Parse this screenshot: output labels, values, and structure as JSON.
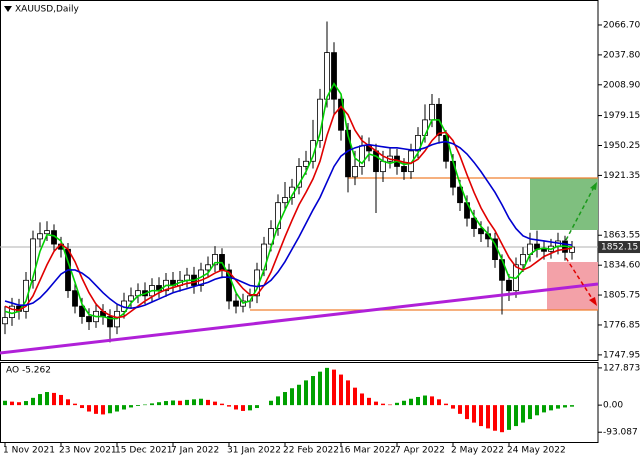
{
  "chart_data": [
    {
      "type": "candlestick",
      "title": "XAUUSD,Daily",
      "categories": [
        "1 Nov 2021",
        null,
        null,
        null,
        null,
        null,
        null,
        null,
        "23 Nov 2021",
        null,
        null,
        null,
        null,
        null,
        null,
        null,
        "15 Dec 2021",
        null,
        null,
        null,
        null,
        null,
        null,
        null,
        "7 Jan 2022",
        null,
        null,
        null,
        null,
        null,
        null,
        null,
        "31 Jan 2022",
        null,
        null,
        null,
        null,
        null,
        null,
        null,
        "22 Feb 2022",
        null,
        null,
        null,
        null,
        null,
        null,
        null,
        "16 Mar 2022",
        null,
        null,
        null,
        null,
        null,
        null,
        null,
        "7 Apr 2022",
        null,
        null,
        null,
        null,
        null,
        null,
        null,
        "2 May 2022",
        null,
        null,
        null,
        null,
        null,
        null,
        null,
        "24 May 2022",
        null,
        null,
        null,
        null,
        null,
        null,
        null,
        null,
        null
      ],
      "open": [
        1778,
        1784,
        1795,
        1790,
        1820,
        1860,
        1865,
        1868,
        1855,
        1850,
        1810,
        1795,
        1785,
        1780,
        1790,
        1785,
        1775,
        1790,
        1800,
        1805,
        1810,
        1805,
        1815,
        1810,
        1820,
        1815,
        1820,
        1825,
        1815,
        1830,
        1835,
        1845,
        1830,
        1800,
        1795,
        1800,
        1805,
        1830,
        1855,
        1870,
        1895,
        1900,
        1910,
        1930,
        1935,
        1955,
        1995,
        2040,
        1995,
        1965,
        1920,
        1930,
        1950,
        1945,
        1925,
        1935,
        1940,
        1930,
        1925,
        1945,
        1960,
        1975,
        1990,
        1960,
        1935,
        1910,
        1895,
        1880,
        1870,
        1865,
        1860,
        1840,
        1820,
        1810,
        1835,
        1845,
        1855,
        1850,
        1848,
        1853,
        1858,
        1847
      ],
      "high": [
        1795,
        1803,
        1802,
        1828,
        1868,
        1876,
        1877,
        1874,
        1862,
        1856,
        1818,
        1803,
        1793,
        1798,
        1797,
        1792,
        1797,
        1808,
        1813,
        1817,
        1818,
        1822,
        1823,
        1827,
        1828,
        1829,
        1832,
        1833,
        1837,
        1843,
        1853,
        1851,
        1836,
        1808,
        1807,
        1812,
        1837,
        1862,
        1878,
        1903,
        1915,
        1918,
        1938,
        1945,
        1975,
        2005,
        2070,
        2050,
        2000,
        1972,
        1945,
        1960,
        1958,
        1952,
        1945,
        1948,
        1947,
        1938,
        1952,
        1968,
        1990,
        2000,
        1996,
        1965,
        1942,
        1917,
        1902,
        1888,
        1877,
        1872,
        1866,
        1845,
        1826,
        1842,
        1852,
        1866,
        1868,
        1858,
        1860,
        1866,
        1863,
        1858
      ],
      "low": [
        1768,
        1776,
        1782,
        1783,
        1812,
        1852,
        1858,
        1848,
        1842,
        1803,
        1788,
        1778,
        1772,
        1774,
        1777,
        1760,
        1768,
        1783,
        1793,
        1798,
        1797,
        1799,
        1803,
        1804,
        1808,
        1809,
        1813,
        1807,
        1809,
        1823,
        1828,
        1822,
        1792,
        1788,
        1789,
        1793,
        1798,
        1824,
        1848,
        1863,
        1887,
        1893,
        1903,
        1922,
        1928,
        1948,
        1987,
        1980,
        1955,
        1905,
        1912,
        1922,
        1935,
        1885,
        1915,
        1928,
        1922,
        1917,
        1918,
        1938,
        1953,
        1968,
        1952,
        1928,
        1902,
        1887,
        1872,
        1862,
        1857,
        1852,
        1832,
        1787,
        1800,
        1803,
        1828,
        1838,
        1842,
        1840,
        1841,
        1845,
        1839,
        1840
      ],
      "close": [
        1784,
        1795,
        1790,
        1820,
        1860,
        1865,
        1868,
        1855,
        1850,
        1810,
        1795,
        1785,
        1780,
        1790,
        1785,
        1775,
        1790,
        1800,
        1805,
        1810,
        1805,
        1815,
        1810,
        1820,
        1815,
        1820,
        1825,
        1815,
        1830,
        1835,
        1845,
        1830,
        1800,
        1795,
        1800,
        1805,
        1830,
        1855,
        1870,
        1895,
        1900,
        1910,
        1930,
        1935,
        1955,
        1995,
        2040,
        1995,
        1965,
        1920,
        1930,
        1950,
        1945,
        1925,
        1935,
        1940,
        1930,
        1925,
        1945,
        1960,
        1975,
        1990,
        1960,
        1935,
        1910,
        1895,
        1880,
        1870,
        1865,
        1860,
        1840,
        1820,
        1810,
        1835,
        1845,
        1855,
        1850,
        1848,
        1853,
        1858,
        1847,
        1852.15
      ],
      "up_color": "#ffffff",
      "down_color": "#000000",
      "wick_color": "#000000",
      "series": [
        {
          "color": "#00d000",
          "values": [
            1790,
            1788,
            1790,
            1800,
            1823,
            1848,
            1864,
            1863,
            1858,
            1838,
            1818,
            1797,
            1787,
            1785,
            1785,
            1783,
            1783,
            1788,
            1798,
            1805,
            1807,
            1810,
            1810,
            1815,
            1815,
            1818,
            1820,
            1820,
            1823,
            1827,
            1837,
            1837,
            1825,
            1808,
            1798,
            1800,
            1812,
            1830,
            1852,
            1873,
            1888,
            1902,
            1913,
            1925,
            1940,
            1962,
            1997,
            2010,
            2000,
            1960,
            1938,
            1933,
            1942,
            1940,
            1935,
            1933,
            1935,
            1932,
            1933,
            1943,
            1960,
            1975,
            1975,
            1962,
            1935,
            1913,
            1895,
            1882,
            1872,
            1865,
            1855,
            1840,
            1823,
            1822,
            1830,
            1845,
            1850,
            1851,
            1850,
            1853,
            1853,
            1852
          ]
        },
        {
          "color": "#e00000",
          "values": [
            1795,
            1792,
            1791,
            1795,
            1805,
            1820,
            1835,
            1848,
            1855,
            1850,
            1838,
            1822,
            1808,
            1797,
            1790,
            1786,
            1784,
            1785,
            1790,
            1795,
            1800,
            1804,
            1808,
            1811,
            1813,
            1815,
            1817,
            1818,
            1820,
            1823,
            1827,
            1830,
            1828,
            1820,
            1812,
            1806,
            1806,
            1815,
            1828,
            1845,
            1862,
            1878,
            1893,
            1905,
            1918,
            1935,
            1960,
            1980,
            1988,
            1980,
            1965,
            1955,
            1950,
            1945,
            1940,
            1937,
            1936,
            1934,
            1933,
            1937,
            1945,
            1955,
            1962,
            1963,
            1955,
            1940,
            1922,
            1905,
            1890,
            1878,
            1868,
            1855,
            1842,
            1833,
            1830,
            1833,
            1838,
            1843,
            1846,
            1849,
            1850,
            1851
          ]
        },
        {
          "color": "#0000d0",
          "values": [
            1800,
            1798,
            1796,
            1796,
            1798,
            1803,
            1810,
            1818,
            1826,
            1830,
            1830,
            1827,
            1822,
            1815,
            1808,
            1802,
            1797,
            1794,
            1793,
            1794,
            1796,
            1799,
            1802,
            1805,
            1808,
            1810,
            1812,
            1814,
            1816,
            1818,
            1821,
            1823,
            1823,
            1821,
            1818,
            1815,
            1814,
            1815,
            1820,
            1828,
            1838,
            1850,
            1862,
            1875,
            1888,
            1900,
            1915,
            1930,
            1940,
            1945,
            1948,
            1950,
            1951,
            1950,
            1949,
            1948,
            1948,
            1947,
            1946,
            1946,
            1948,
            1951,
            1953,
            1954,
            1952,
            1948,
            1942,
            1934,
            1925,
            1915,
            1905,
            1893,
            1880,
            1870,
            1863,
            1860,
            1859,
            1858,
            1857,
            1856,
            1855,
            1854
          ]
        }
      ],
      "current_price": 1852.15,
      "ylim": [
        1743,
        2086
      ],
      "yticks": [
        {
          "value": 2066.7,
          "label": "2066.70"
        },
        {
          "value": 2037.8,
          "label": "2037.80"
        },
        {
          "value": 2008.9,
          "label": "2008.90"
        },
        1979.15,
        1950.25,
        1921.35,
        1863.55,
        {
          "value": 1834.6,
          "label": "1834.60"
        },
        1805.75,
        1776.85,
        1747.95
      ]
    },
    {
      "type": "histogram_oscillator",
      "title": "AO -5.262",
      "up_color": "#00a000",
      "down_color": "#ff0000",
      "values": [
        15,
        12,
        10,
        14,
        25,
        38,
        45,
        42,
        35,
        20,
        5,
        -10,
        -22,
        -30,
        -32,
        -28,
        -22,
        -15,
        -8,
        -3,
        2,
        6,
        10,
        14,
        16,
        15,
        18,
        20,
        22,
        18,
        12,
        5,
        -5,
        -15,
        -20,
        -18,
        -10,
        0,
        15,
        30,
        45,
        58,
        70,
        85,
        100,
        115,
        128,
        122,
        105,
        85,
        60,
        40,
        25,
        12,
        5,
        2,
        8,
        15,
        22,
        28,
        33,
        30,
        20,
        5,
        -12,
        -30,
        -48,
        -60,
        -72,
        -80,
        -88,
        -93,
        -85,
        -72,
        -60,
        -48,
        -35,
        -25,
        -18,
        -12,
        -8,
        -5.262
      ],
      "ylim": [
        -126.7,
        141.3
      ],
      "yticks": [
        127.873,
        {
          "value": 0,
          "label": "0.00"
        },
        -93.087
      ]
    }
  ]
}
